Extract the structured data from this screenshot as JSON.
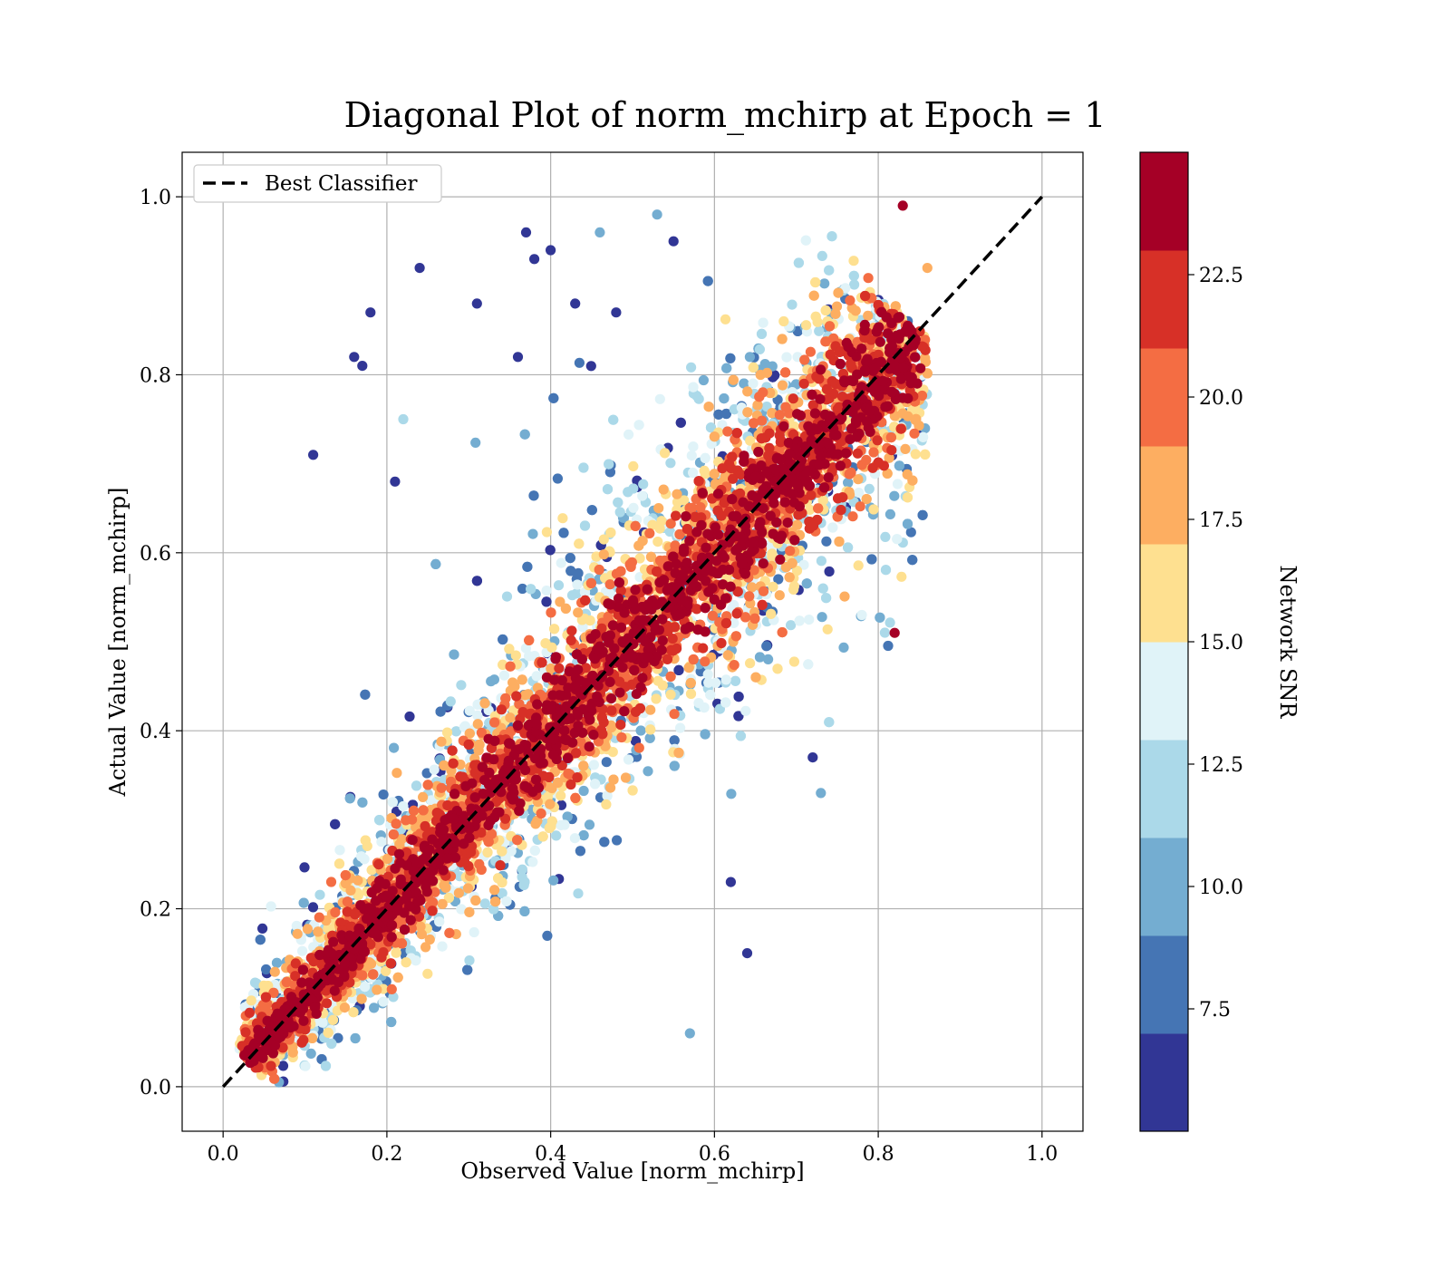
{
  "chart_data": {
    "type": "scatter",
    "title": "Diagonal Plot of norm_mchirp at Epoch = 1",
    "xlabel": "Observed Value [norm_mchirp]",
    "ylabel": "Actual Value [norm_mchirp]",
    "xlim": [
      -0.05,
      1.05
    ],
    "ylim": [
      -0.05,
      1.05
    ],
    "x_ticks": [
      "0.0",
      "0.2",
      "0.4",
      "0.6",
      "0.8",
      "1.0"
    ],
    "y_ticks": [
      "0.0",
      "0.2",
      "0.4",
      "0.6",
      "0.8",
      "1.0"
    ],
    "grid": true,
    "legend": {
      "placement": "top-left",
      "entries": [
        "Best Classifier"
      ]
    },
    "reference_line": {
      "name": "Best Classifier",
      "x": [
        0.0,
        1.0
      ],
      "y": [
        0.0,
        1.0
      ],
      "style": "dashed",
      "color": "#000000"
    },
    "colorbar": {
      "label": "Network SNR",
      "range": [
        5.0,
        25.0
      ],
      "boundaries": [
        5.0,
        7.0,
        9.0,
        11.0,
        13.0,
        15.0,
        17.0,
        19.0,
        21.0,
        23.0,
        25.0
      ],
      "colors": [
        "#313695",
        "#4575b4",
        "#74add1",
        "#abd9e9",
        "#e0f3f8",
        "#fee090",
        "#fdae61",
        "#f46d43",
        "#d73027",
        "#a50026"
      ],
      "ticks": [
        7.5,
        10.0,
        12.5,
        15.0,
        17.5,
        20.0,
        22.5
      ],
      "tick_labels": [
        "7.5",
        "10.0",
        "12.5",
        "15.0",
        "17.5",
        "20.0",
        "22.5"
      ]
    },
    "series": [
      {
        "marker_color_by": "Network SNR",
        "points_note_x": [
          0.11,
          0.16,
          0.17,
          0.18,
          0.21,
          0.22,
          0.24,
          0.31,
          0.36,
          0.37,
          0.38,
          0.4,
          0.43,
          0.46,
          0.48,
          0.53,
          0.55,
          0.57,
          0.62,
          0.64,
          0.82,
          0.83,
          0.72,
          0.73,
          0.78,
          0.86
        ],
        "points_note_y": [
          0.71,
          0.82,
          0.81,
          0.87,
          0.68,
          0.75,
          0.92,
          0.88,
          0.82,
          0.96,
          0.93,
          0.94,
          0.88,
          0.96,
          0.87,
          0.98,
          0.95,
          0.06,
          0.23,
          0.15,
          0.51,
          0.99,
          0.37,
          0.33,
          0.53,
          0.92
        ],
        "points_note_snr": [
          6,
          6,
          6,
          6,
          6,
          11,
          6,
          6,
          6,
          6,
          6,
          6,
          6,
          9,
          6,
          9,
          6,
          9,
          6,
          6,
          24,
          24,
          6,
          10,
          14,
          18
        ]
      }
    ]
  }
}
